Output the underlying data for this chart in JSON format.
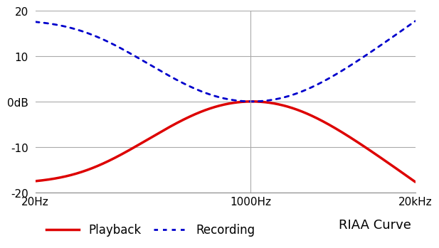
{
  "title": "RIAA Curve",
  "freq_min": 20,
  "freq_max": 20000,
  "db_min": -20,
  "db_max": 20,
  "yticks": [
    -20,
    -10,
    0,
    10,
    20
  ],
  "ytick_labels": [
    "-20",
    "-10",
    "0dB",
    "10",
    "20"
  ],
  "xtick_positions": [
    20,
    1000,
    20000
  ],
  "xtick_labels": [
    "20Hz",
    "1000Hz",
    "20kHz"
  ],
  "vline_x": 1000,
  "playback_color": "#dd0000",
  "recording_color": "#0000cc",
  "grid_color": "#aaaaaa",
  "background_color": "#ffffff",
  "legend_playback": "Playback",
  "legend_recording": "Recording",
  "ref_freq": 1000
}
